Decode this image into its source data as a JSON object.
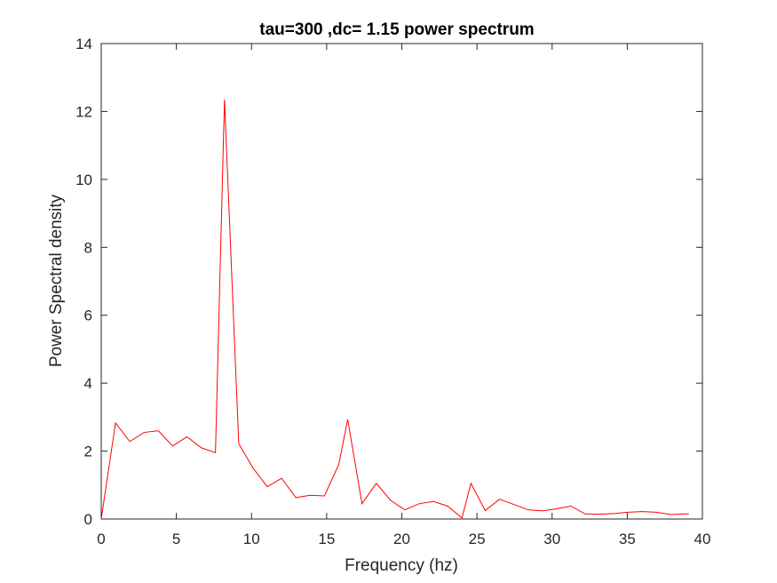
{
  "chart_data": {
    "type": "line",
    "title": "tau=300 ,dc= 1.15 power spectrum",
    "xlabel": "Frequency (hz)",
    "ylabel": "Power Spectral density",
    "xlim": [
      0,
      40
    ],
    "ylim": [
      0,
      14
    ],
    "xticks": [
      0,
      5,
      10,
      15,
      20,
      25,
      30,
      35,
      40
    ],
    "yticks": [
      0,
      2,
      4,
      6,
      8,
      10,
      12,
      14
    ],
    "grid": false,
    "series": [
      {
        "name": "power spectrum",
        "color": "#ff0000",
        "x": [
          0,
          0.95,
          1.9,
          2.85,
          3.8,
          4.75,
          5.7,
          6.65,
          7.6,
          8.2,
          9.15,
          10.1,
          11.05,
          12.0,
          12.95,
          13.9,
          14.85,
          15.8,
          16.4,
          17.35,
          18.3,
          19.25,
          20.2,
          21.15,
          22.1,
          23.05,
          24.0,
          24.6,
          25.55,
          26.5,
          27.45,
          28.4,
          29.35,
          30.3,
          31.25,
          32.2,
          33.15,
          34.1,
          35.05,
          36.0,
          36.95,
          37.9,
          38.85,
          39.1
        ],
        "y": [
          0,
          2.83,
          2.28,
          2.55,
          2.6,
          2.15,
          2.42,
          2.1,
          1.95,
          12.35,
          2.22,
          1.5,
          0.95,
          1.2,
          0.63,
          0.7,
          0.68,
          1.6,
          2.93,
          0.45,
          1.05,
          0.55,
          0.27,
          0.45,
          0.52,
          0.38,
          0.03,
          1.05,
          0.25,
          0.58,
          0.43,
          0.27,
          0.24,
          0.3,
          0.38,
          0.15,
          0.14,
          0.16,
          0.2,
          0.22,
          0.2,
          0.13,
          0.15,
          0.15
        ]
      }
    ]
  },
  "style": {
    "line_color": "#ff0000",
    "axis_color": "#262626",
    "background": "#ffffff"
  }
}
